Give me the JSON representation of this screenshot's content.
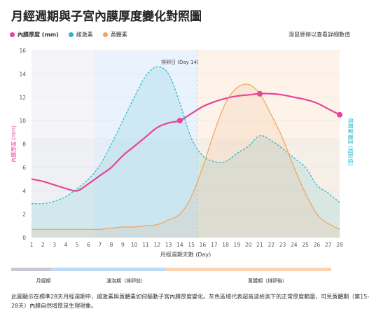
{
  "title": "月經週期與子宮內膜厚度變化對照圖",
  "hint": "滑鼠懸停以查看詳細數值",
  "colors": {
    "thickness": "#e8449a",
    "estrogen": "#29b6c8",
    "progesterone": "#f2a35a",
    "menstrual": "#c9c9d6",
    "follicular": "#bcd9f5",
    "luteal": "#fbd3b0"
  },
  "ovulation_label": "排卵日 (Day 14)",
  "phases": [
    {
      "name": "月經期",
      "start": 1,
      "end": 5
    },
    {
      "name": "濾泡期（排卵前）",
      "start": 5,
      "end": 15
    },
    {
      "name": "黃體期（排卵後）",
      "start": 15,
      "end": 28
    }
  ],
  "caption": "此圖顯示在標準28天月經週期中，雌激素與黃體素如何驅動子宮內膜厚度變化。灰色區域代表超音波檢測下的正常厚度範圍，可見黃體期（第15-28天）內膜自然增厚是生理現象。",
  "chart_data": {
    "type": "line",
    "title": "月經週期與子宮內膜厚度變化對照圖",
    "xlabel": "月經週期天數 (Day)",
    "ylabel": "內膜厚度 (mm)",
    "y2label": "荷爾蒙濃度 (相對值)",
    "x": [
      1,
      2,
      3,
      4,
      5,
      6,
      7,
      8,
      9,
      10,
      11,
      12,
      13,
      14,
      15,
      16,
      17,
      18,
      19,
      20,
      21,
      22,
      23,
      24,
      25,
      26,
      27,
      28
    ],
    "xlim": [
      1,
      28
    ],
    "ylim": [
      0,
      16
    ],
    "yticks": [
      0,
      2,
      4,
      6,
      8,
      10,
      12,
      14,
      16
    ],
    "xticks": [
      1,
      2,
      3,
      4,
      5,
      6,
      7,
      8,
      9,
      10,
      11,
      12,
      13,
      14,
      15,
      16,
      17,
      18,
      19,
      20,
      21,
      22,
      23,
      24,
      25,
      26,
      27,
      28
    ],
    "series": [
      {
        "name": "內膜厚度 (mm)",
        "style": "solid",
        "values": [
          5.0,
          4.8,
          4.5,
          4.2,
          4.0,
          4.6,
          5.3,
          6.0,
          7.0,
          7.8,
          8.6,
          9.4,
          9.8,
          10.0,
          10.6,
          11.2,
          11.6,
          11.9,
          12.1,
          12.2,
          12.3,
          12.3,
          12.2,
          12.0,
          11.8,
          11.5,
          11.0,
          10.5
        ],
        "markers": [
          14,
          21,
          28
        ]
      },
      {
        "name": "雌激素",
        "style": "dashed",
        "values": [
          2.9,
          2.9,
          3.1,
          3.5,
          4.2,
          5.0,
          6.2,
          8.0,
          10.0,
          12.0,
          13.8,
          14.6,
          14.0,
          11.5,
          8.5,
          7.0,
          6.5,
          6.5,
          7.2,
          7.8,
          8.7,
          8.3,
          7.6,
          6.8,
          6.0,
          4.5,
          3.8,
          3.0
        ]
      },
      {
        "name": "黃體素",
        "style": "solid",
        "values": [
          0.7,
          0.7,
          0.7,
          0.7,
          0.7,
          0.7,
          0.7,
          0.8,
          0.9,
          0.9,
          1.0,
          1.1,
          1.5,
          2.0,
          3.5,
          6.0,
          9.0,
          11.5,
          12.8,
          13.1,
          12.3,
          10.5,
          8.5,
          6.0,
          3.8,
          2.0,
          1.2,
          0.7
        ]
      }
    ],
    "normal_range_band": {
      "label": "正常厚度範圍",
      "lower": 0,
      "upper": 8.5,
      "start": 1,
      "end": 28
    },
    "grid": true,
    "legend": "top-left"
  }
}
